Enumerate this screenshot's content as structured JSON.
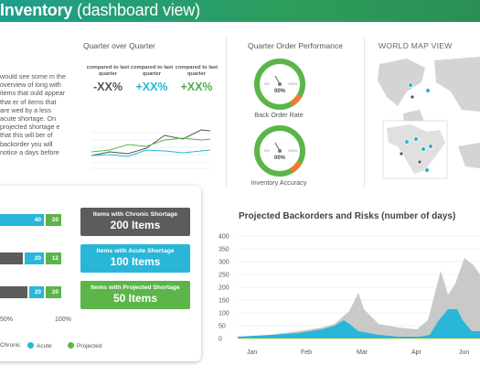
{
  "header": {
    "title_bold": "Inventory",
    "title_rest": "(dashboard view)"
  },
  "intro_text": "would see some m the overview of long with items that ould appear that er of items that are wed by a less acute shortage. On projected shortage e that this will ber of backorder you will notice a days before",
  "quarter": {
    "title": "Quarter over Quarter",
    "stats": [
      {
        "label": "compared to last quarter",
        "value": "-XX%",
        "color": "#555555"
      },
      {
        "label": "compared to last quarter",
        "value": "+XX%",
        "color": "#29b6d8"
      },
      {
        "label": "compared to last quarter",
        "value": "+XX%",
        "color": "#4caf50"
      }
    ]
  },
  "performance": {
    "title": "Quarter Order Performance",
    "gauges": [
      {
        "label": "Back Order Rate",
        "value": "00%",
        "min": "0%",
        "max": "100%",
        "fill_fraction": 0.12
      },
      {
        "label": "Inventory Accuracy",
        "value": "00%",
        "min": "0%",
        "max": "100%",
        "fill_fraction": 0.12
      }
    ]
  },
  "map": {
    "title": "WORLD MAP VIEW"
  },
  "shortage_bars": {
    "rows": [
      {
        "acute": "40",
        "projected": "20"
      },
      {
        "acute": "20",
        "projected": "12"
      },
      {
        "acute": "20",
        "projected": "20"
      }
    ],
    "axis": [
      "50%",
      "100%"
    ],
    "legend": [
      "Chronic",
      "Acute",
      "Projected"
    ]
  },
  "badges": [
    {
      "label": "Items with Chronic Shortage",
      "value": "200 Items",
      "color": "#5c5c5c"
    },
    {
      "label": "Items with Acute Shortage",
      "value": "100 Items",
      "color": "#29b6d8"
    },
    {
      "label": "Items with Projected Shortage",
      "value": "50 Items",
      "color": "#5bb548"
    }
  ],
  "backorders": {
    "title": "Projected Backorders and Risks (number of days)"
  },
  "chart_data": {
    "type": "area",
    "title": "Projected Backorders and Risks (number of days)",
    "categories": [
      "Jan",
      "Feb",
      "Mar",
      "Apr",
      "Jun"
    ],
    "yticks": [
      "400",
      "350",
      "300",
      "250",
      "200",
      "150",
      "100",
      "50",
      "0"
    ],
    "ylim": [
      0,
      400
    ]
  },
  "colors": {
    "teal": "#29b6d8",
    "green": "#5bb548",
    "gray": "#5c5c5c",
    "header": "#2a9d6a"
  }
}
